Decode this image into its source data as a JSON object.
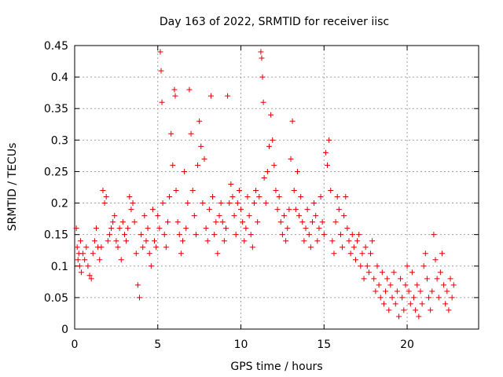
{
  "chart_data": {
    "type": "scatter",
    "title": "Day 163 of 2022, SRMTID for receiver iisc",
    "xlabel": "GPS time / hours",
    "ylabel": "SRMTID / TECUs",
    "xlim": [
      0,
      24.3
    ],
    "ylim": [
      0,
      0.45
    ],
    "x_ticks": [
      0,
      5,
      10,
      15,
      20
    ],
    "x_tick_labels": [
      "0",
      "5",
      "10",
      "15",
      "20"
    ],
    "y_ticks": [
      0,
      0.05,
      0.1,
      0.15,
      0.2,
      0.25,
      0.3,
      0.35,
      0.4,
      0.45
    ],
    "y_tick_labels": [
      "0",
      "0.05",
      "0.1",
      "0.15",
      "0.2",
      "0.25",
      "0.3",
      "0.35",
      "0.4",
      "0.45"
    ],
    "grid": true,
    "marker": "+",
    "color": "#e00000",
    "series": [
      {
        "name": "SRMTID",
        "points": [
          [
            0.1,
            0.16
          ],
          [
            0.15,
            0.13
          ],
          [
            0.2,
            0.11
          ],
          [
            0.25,
            0.12
          ],
          [
            0.3,
            0.1
          ],
          [
            0.35,
            0.14
          ],
          [
            0.4,
            0.09
          ],
          [
            0.5,
            0.12
          ],
          [
            0.6,
            0.11
          ],
          [
            0.7,
            0.13
          ],
          [
            0.8,
            0.1
          ],
          [
            0.9,
            0.085
          ],
          [
            1.0,
            0.08
          ],
          [
            1.1,
            0.12
          ],
          [
            1.2,
            0.14
          ],
          [
            1.3,
            0.16
          ],
          [
            1.4,
            0.13
          ],
          [
            1.5,
            0.11
          ],
          [
            1.6,
            0.13
          ],
          [
            1.7,
            0.22
          ],
          [
            1.8,
            0.2
          ],
          [
            1.9,
            0.21
          ],
          [
            2.0,
            0.14
          ],
          [
            2.1,
            0.15
          ],
          [
            2.2,
            0.16
          ],
          [
            2.3,
            0.17
          ],
          [
            2.4,
            0.18
          ],
          [
            2.5,
            0.14
          ],
          [
            2.6,
            0.13
          ],
          [
            2.7,
            0.16
          ],
          [
            2.8,
            0.11
          ],
          [
            2.9,
            0.17
          ],
          [
            3.0,
            0.15
          ],
          [
            3.1,
            0.14
          ],
          [
            3.2,
            0.16
          ],
          [
            3.3,
            0.21
          ],
          [
            3.4,
            0.19
          ],
          [
            3.5,
            0.2
          ],
          [
            3.6,
            0.17
          ],
          [
            3.7,
            0.12
          ],
          [
            3.8,
            0.07
          ],
          [
            3.9,
            0.05
          ],
          [
            4.0,
            0.15
          ],
          [
            4.1,
            0.13
          ],
          [
            4.2,
            0.18
          ],
          [
            4.3,
            0.14
          ],
          [
            4.4,
            0.16
          ],
          [
            4.5,
            0.12
          ],
          [
            4.6,
            0.1
          ],
          [
            4.7,
            0.19
          ],
          [
            4.8,
            0.14
          ],
          [
            4.9,
            0.13
          ],
          [
            5.0,
            0.18
          ],
          [
            5.1,
            0.16
          ],
          [
            5.15,
            0.44
          ],
          [
            5.2,
            0.41
          ],
          [
            5.25,
            0.36
          ],
          [
            5.3,
            0.2
          ],
          [
            5.4,
            0.15
          ],
          [
            5.5,
            0.13
          ],
          [
            5.6,
            0.17
          ],
          [
            5.7,
            0.21
          ],
          [
            5.8,
            0.31
          ],
          [
            5.9,
            0.26
          ],
          [
            6.0,
            0.38
          ],
          [
            6.05,
            0.37
          ],
          [
            6.1,
            0.22
          ],
          [
            6.2,
            0.17
          ],
          [
            6.3,
            0.15
          ],
          [
            6.4,
            0.12
          ],
          [
            6.5,
            0.14
          ],
          [
            6.6,
            0.25
          ],
          [
            6.7,
            0.16
          ],
          [
            6.8,
            0.2
          ],
          [
            6.9,
            0.38
          ],
          [
            7.0,
            0.31
          ],
          [
            7.1,
            0.22
          ],
          [
            7.2,
            0.18
          ],
          [
            7.3,
            0.15
          ],
          [
            7.4,
            0.26
          ],
          [
            7.5,
            0.33
          ],
          [
            7.6,
            0.29
          ],
          [
            7.7,
            0.2
          ],
          [
            7.8,
            0.27
          ],
          [
            7.9,
            0.16
          ],
          [
            8.0,
            0.14
          ],
          [
            8.1,
            0.19
          ],
          [
            8.2,
            0.37
          ],
          [
            8.3,
            0.21
          ],
          [
            8.4,
            0.15
          ],
          [
            8.5,
            0.17
          ],
          [
            8.6,
            0.12
          ],
          [
            8.7,
            0.18
          ],
          [
            8.8,
            0.2
          ],
          [
            8.9,
            0.17
          ],
          [
            9.0,
            0.14
          ],
          [
            9.1,
            0.16
          ],
          [
            9.2,
            0.37
          ],
          [
            9.3,
            0.2
          ],
          [
            9.4,
            0.23
          ],
          [
            9.5,
            0.21
          ],
          [
            9.6,
            0.18
          ],
          [
            9.7,
            0.15
          ],
          [
            9.8,
            0.2
          ],
          [
            9.9,
            0.22
          ],
          [
            10.0,
            0.19
          ],
          [
            10.1,
            0.17
          ],
          [
            10.2,
            0.14
          ],
          [
            10.3,
            0.16
          ],
          [
            10.4,
            0.21
          ],
          [
            10.5,
            0.18
          ],
          [
            10.6,
            0.15
          ],
          [
            10.7,
            0.13
          ],
          [
            10.8,
            0.2
          ],
          [
            10.9,
            0.22
          ],
          [
            11.0,
            0.17
          ],
          [
            11.1,
            0.21
          ],
          [
            11.2,
            0.44
          ],
          [
            11.25,
            0.43
          ],
          [
            11.3,
            0.4
          ],
          [
            11.35,
            0.36
          ],
          [
            11.4,
            0.24
          ],
          [
            11.5,
            0.2
          ],
          [
            11.6,
            0.25
          ],
          [
            11.7,
            0.29
          ],
          [
            11.8,
            0.34
          ],
          [
            11.9,
            0.3
          ],
          [
            12.0,
            0.26
          ],
          [
            12.1,
            0.22
          ],
          [
            12.2,
            0.19
          ],
          [
            12.3,
            0.21
          ],
          [
            12.4,
            0.17
          ],
          [
            12.5,
            0.15
          ],
          [
            12.6,
            0.18
          ],
          [
            12.7,
            0.14
          ],
          [
            12.8,
            0.16
          ],
          [
            12.9,
            0.19
          ],
          [
            13.0,
            0.27
          ],
          [
            13.1,
            0.33
          ],
          [
            13.2,
            0.22
          ],
          [
            13.3,
            0.19
          ],
          [
            13.4,
            0.25
          ],
          [
            13.5,
            0.18
          ],
          [
            13.6,
            0.21
          ],
          [
            13.7,
            0.17
          ],
          [
            13.8,
            0.14
          ],
          [
            13.9,
            0.16
          ],
          [
            14.0,
            0.19
          ],
          [
            14.1,
            0.15
          ],
          [
            14.2,
            0.13
          ],
          [
            14.3,
            0.17
          ],
          [
            14.4,
            0.2
          ],
          [
            14.5,
            0.18
          ],
          [
            14.6,
            0.14
          ],
          [
            14.7,
            0.16
          ],
          [
            14.8,
            0.21
          ],
          [
            14.9,
            0.17
          ],
          [
            15.0,
            0.15
          ],
          [
            15.1,
            0.28
          ],
          [
            15.2,
            0.26
          ],
          [
            15.3,
            0.3
          ],
          [
            15.4,
            0.22
          ],
          [
            15.5,
            0.14
          ],
          [
            15.6,
            0.12
          ],
          [
            15.7,
            0.17
          ],
          [
            15.8,
            0.21
          ],
          [
            15.9,
            0.19
          ],
          [
            16.0,
            0.15
          ],
          [
            16.1,
            0.13
          ],
          [
            16.2,
            0.18
          ],
          [
            16.3,
            0.21
          ],
          [
            16.4,
            0.16
          ],
          [
            16.5,
            0.14
          ],
          [
            16.6,
            0.12
          ],
          [
            16.7,
            0.15
          ],
          [
            16.8,
            0.13
          ],
          [
            16.9,
            0.11
          ],
          [
            17.0,
            0.14
          ],
          [
            17.1,
            0.15
          ],
          [
            17.2,
            0.1
          ],
          [
            17.3,
            0.12
          ],
          [
            17.4,
            0.08
          ],
          [
            17.5,
            0.13
          ],
          [
            17.6,
            0.1
          ],
          [
            17.7,
            0.09
          ],
          [
            17.8,
            0.12
          ],
          [
            17.9,
            0.14
          ],
          [
            18.0,
            0.08
          ],
          [
            18.1,
            0.06
          ],
          [
            18.2,
            0.1
          ],
          [
            18.3,
            0.07
          ],
          [
            18.4,
            0.05
          ],
          [
            18.5,
            0.09
          ],
          [
            18.6,
            0.04
          ],
          [
            18.7,
            0.06
          ],
          [
            18.8,
            0.08
          ],
          [
            18.9,
            0.03
          ],
          [
            19.0,
            0.07
          ],
          [
            19.1,
            0.05
          ],
          [
            19.2,
            0.09
          ],
          [
            19.3,
            0.04
          ],
          [
            19.4,
            0.06
          ],
          [
            19.5,
            0.02
          ],
          [
            19.6,
            0.08
          ],
          [
            19.7,
            0.05
          ],
          [
            19.8,
            0.03
          ],
          [
            19.9,
            0.07
          ],
          [
            20.0,
            0.1
          ],
          [
            20.1,
            0.06
          ],
          [
            20.2,
            0.04
          ],
          [
            20.3,
            0.09
          ],
          [
            20.4,
            0.05
          ],
          [
            20.5,
            0.03
          ],
          [
            20.6,
            0.07
          ],
          [
            20.7,
            0.02
          ],
          [
            20.8,
            0.06
          ],
          [
            20.9,
            0.04
          ],
          [
            21.0,
            0.1
          ],
          [
            21.1,
            0.12
          ],
          [
            21.2,
            0.08
          ],
          [
            21.3,
            0.05
          ],
          [
            21.4,
            0.03
          ],
          [
            21.5,
            0.06
          ],
          [
            21.6,
            0.15
          ],
          [
            21.7,
            0.11
          ],
          [
            21.8,
            0.08
          ],
          [
            21.9,
            0.05
          ],
          [
            22.0,
            0.09
          ],
          [
            22.1,
            0.12
          ],
          [
            22.2,
            0.07
          ],
          [
            22.3,
            0.04
          ],
          [
            22.4,
            0.06
          ],
          [
            22.5,
            0.03
          ],
          [
            22.6,
            0.08
          ],
          [
            22.7,
            0.05
          ],
          [
            22.8,
            0.07
          ]
        ]
      }
    ]
  }
}
